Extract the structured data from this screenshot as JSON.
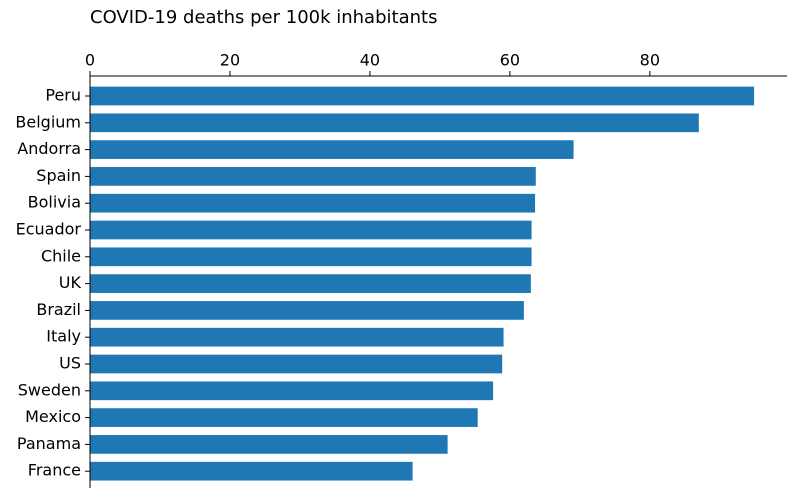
{
  "chart_data": {
    "type": "barh",
    "title": "COVID-19 deaths per 100k inhabitants",
    "categories": [
      "Peru",
      "Belgium",
      "Andorra",
      "Spain",
      "Bolivia",
      "Ecuador",
      "Chile",
      "UK",
      "Brazil",
      "Italy",
      "US",
      "Sweden",
      "Mexico",
      "Panama",
      "France"
    ],
    "values": [
      94.9,
      87.0,
      69.1,
      63.7,
      63.6,
      63.1,
      63.1,
      63.0,
      62.0,
      59.1,
      58.9,
      57.6,
      55.4,
      51.1,
      46.1
    ],
    "color": "#1f77b4",
    "xlim": [
      0,
      99.6
    ],
    "xticks": [
      0,
      20,
      40,
      60,
      80
    ],
    "grid": false
  }
}
